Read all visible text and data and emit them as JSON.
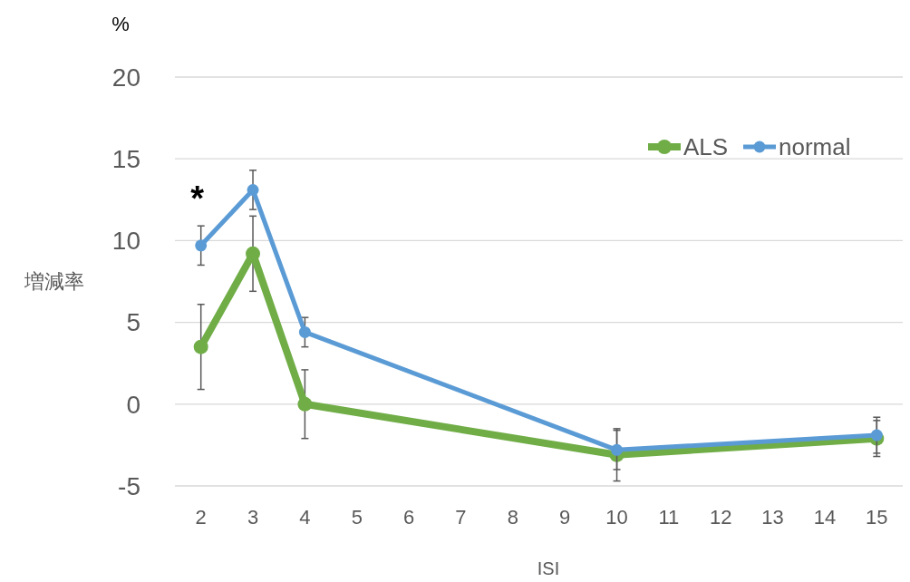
{
  "chart_data": {
    "type": "line",
    "xlabel": "ISI",
    "ylabel": "増減率",
    "annotations": [
      "%",
      "*"
    ],
    "x": [
      2,
      3,
      4,
      10,
      15
    ],
    "xlim": [
      1.5,
      15.5
    ],
    "xticks": [
      2,
      3,
      4,
      5,
      6,
      7,
      8,
      9,
      10,
      11,
      12,
      13,
      14,
      15
    ],
    "ylim": [
      -5,
      20
    ],
    "yticks": [
      -5,
      0,
      5,
      10,
      15,
      20
    ],
    "grid": "y",
    "legend": "top right",
    "marker": "circle",
    "line_style": "solid",
    "series": [
      {
        "name": "ALS",
        "color": "#70ad47",
        "values": [
          3.5,
          9.2,
          0,
          -3.1,
          -2.1
        ],
        "errors": [
          2.6,
          2.3,
          2.1,
          1.6,
          1.1
        ]
      },
      {
        "name": "normal",
        "color": "#5b9bd5",
        "values": [
          9.7,
          13.1,
          4.4,
          -2.8,
          -1.9
        ],
        "errors": [
          1.2,
          1.2,
          0.9,
          1.2,
          1.1
        ]
      }
    ]
  }
}
